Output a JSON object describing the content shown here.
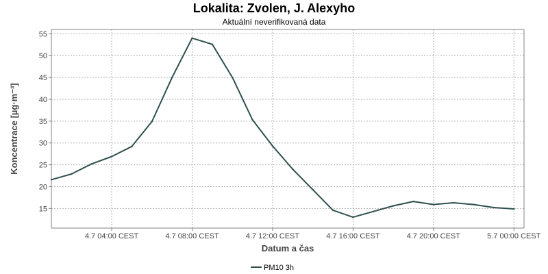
{
  "chart_data": {
    "type": "line",
    "title": "Lokalita: Zvolen, J. Alexyho",
    "subtitle": "Aktuální neverifikovaná data",
    "xlabel": "Datum a čas",
    "ylabel": "Koncentrace [µg·m⁻³]",
    "ylim": [
      10.5,
      56
    ],
    "xlim": [
      "2024-07-04 01:00",
      "2024-07-05 00:30"
    ],
    "yticks": [
      15,
      20,
      25,
      30,
      35,
      40,
      45,
      50,
      55
    ],
    "xticks": [
      {
        "at": "2024-07-04 04:00",
        "label": "4.7 04:00 CEST"
      },
      {
        "at": "2024-07-04 08:00",
        "label": "4.7 08:00 CEST"
      },
      {
        "at": "2024-07-04 12:00",
        "label": "4.7 12:00 CEST"
      },
      {
        "at": "2024-07-04 16:00",
        "label": "4.7 16:00 CEST"
      },
      {
        "at": "2024-07-04 20:00",
        "label": "4.7 20:00 CEST"
      },
      {
        "at": "2024-07-05 00:00",
        "label": "5.7 00:00 CEST"
      }
    ],
    "grid": true,
    "legend_position": "bottom",
    "series": [
      {
        "name": "PM10 3h",
        "color": "#2f4f4f",
        "x": [
          "2024-07-04 01:00",
          "2024-07-04 02:00",
          "2024-07-04 03:00",
          "2024-07-04 04:00",
          "2024-07-04 05:00",
          "2024-07-04 06:00",
          "2024-07-04 07:00",
          "2024-07-04 08:00",
          "2024-07-04 09:00",
          "2024-07-04 10:00",
          "2024-07-04 11:00",
          "2024-07-04 12:00",
          "2024-07-04 13:00",
          "2024-07-04 14:00",
          "2024-07-04 15:00",
          "2024-07-04 16:00",
          "2024-07-04 17:00",
          "2024-07-04 18:00",
          "2024-07-04 19:00",
          "2024-07-04 20:00",
          "2024-07-04 21:00",
          "2024-07-04 22:00",
          "2024-07-04 23:00",
          "2024-07-05 00:00"
        ],
        "y": [
          21.6,
          22.9,
          25.2,
          26.9,
          29.2,
          34.9,
          45.0,
          54.0,
          52.6,
          45.0,
          35.3,
          29.3,
          24.0,
          19.3,
          14.6,
          13.0,
          14.3,
          15.6,
          16.6,
          15.9,
          16.3,
          15.9,
          15.2,
          14.9
        ]
      }
    ]
  }
}
